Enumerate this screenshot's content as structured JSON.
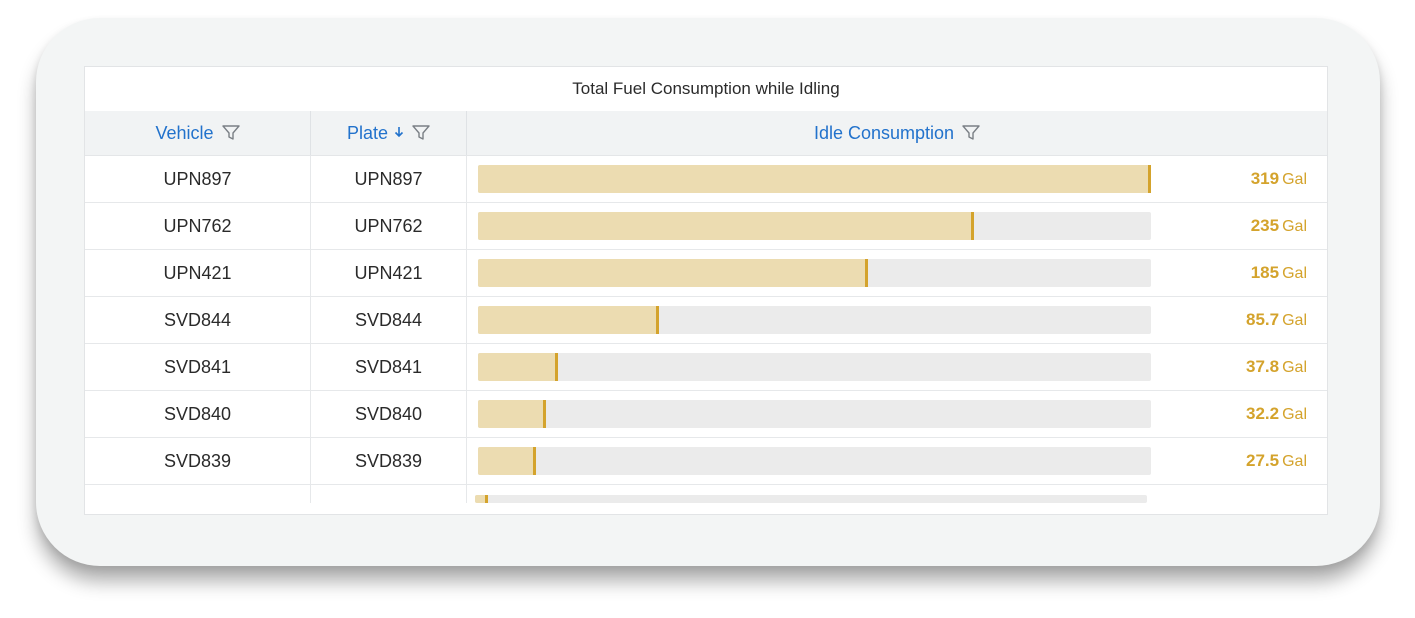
{
  "title": "Total Fuel Consumption while Idling",
  "columns": {
    "vehicle": "Vehicle",
    "plate": "Plate",
    "idle": "Idle Consumption"
  },
  "icons": {
    "filter": "filter-funnel-icon",
    "sort": "sort-descending-arrow-icon"
  },
  "colors": {
    "header_text": "#2272cc",
    "bar_fill": "#ecdcb1",
    "bar_marker": "#d4a32c",
    "value_text": "#d4a32c",
    "track": "#ebebeb"
  },
  "max_value": 319,
  "rows": [
    {
      "vehicle": "UPN897",
      "plate": "UPN897",
      "value": 319,
      "value_label": "319",
      "unit": "Gal"
    },
    {
      "vehicle": "UPN762",
      "plate": "UPN762",
      "value": 235,
      "value_label": "235",
      "unit": "Gal"
    },
    {
      "vehicle": "UPN421",
      "plate": "UPN421",
      "value": 185,
      "value_label": "185",
      "unit": "Gal"
    },
    {
      "vehicle": "SVD844",
      "plate": "SVD844",
      "value": 85.7,
      "value_label": "85.7",
      "unit": "Gal"
    },
    {
      "vehicle": "SVD841",
      "plate": "SVD841",
      "value": 37.8,
      "value_label": "37.8",
      "unit": "Gal"
    },
    {
      "vehicle": "SVD840",
      "plate": "SVD840",
      "value": 32.2,
      "value_label": "32.2",
      "unit": "Gal"
    },
    {
      "vehicle": "SVD839",
      "plate": "SVD839",
      "value": 27.5,
      "value_label": "27.5",
      "unit": "Gal"
    }
  ],
  "partial_row": {
    "value": 6
  }
}
